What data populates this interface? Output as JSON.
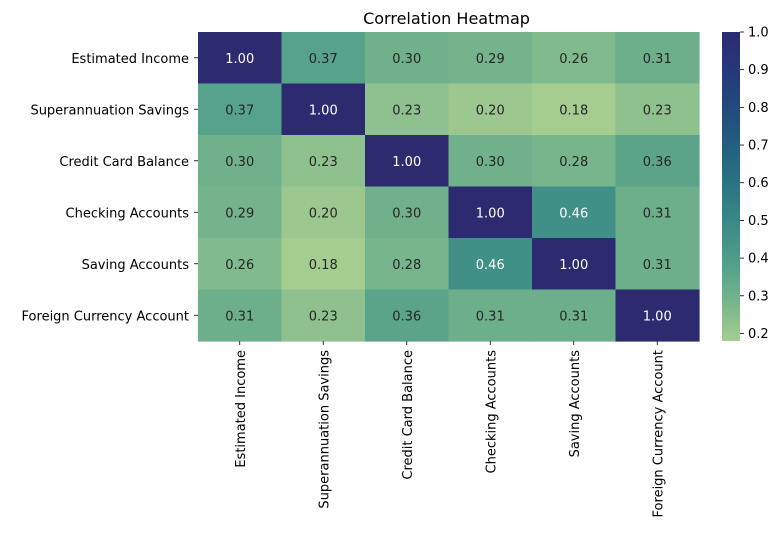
{
  "chart_data": {
    "type": "heatmap",
    "title": "Correlation Heatmap",
    "xlabel": "",
    "ylabel": "",
    "rows": [
      "Estimated Income",
      "Superannuation Savings",
      "Credit Card Balance",
      "Checking Accounts",
      "Saving Accounts",
      "Foreign Currency Account"
    ],
    "columns": [
      "Estimated Income",
      "Superannuation Savings",
      "Credit Card Balance",
      "Checking Accounts",
      "Saving Accounts",
      "Foreign Currency Account"
    ],
    "values": [
      [
        1.0,
        0.37,
        0.3,
        0.29,
        0.26,
        0.31
      ],
      [
        0.37,
        1.0,
        0.23,
        0.2,
        0.18,
        0.23
      ],
      [
        0.3,
        0.23,
        1.0,
        0.3,
        0.28,
        0.36
      ],
      [
        0.29,
        0.2,
        0.3,
        1.0,
        0.46,
        0.31
      ],
      [
        0.26,
        0.18,
        0.28,
        0.46,
        1.0,
        0.31
      ],
      [
        0.31,
        0.23,
        0.36,
        0.31,
        0.31,
        1.0
      ]
    ],
    "value_format": "2 decimals",
    "colormap": "crest",
    "colorbar": {
      "range": [
        0.18,
        1.0
      ],
      "ticks": [
        "0.2",
        "0.3",
        "0.4",
        "0.5",
        "0.6",
        "0.7",
        "0.8",
        "0.9",
        "1.0"
      ]
    },
    "grid": false,
    "legend": "colorbar-right"
  }
}
